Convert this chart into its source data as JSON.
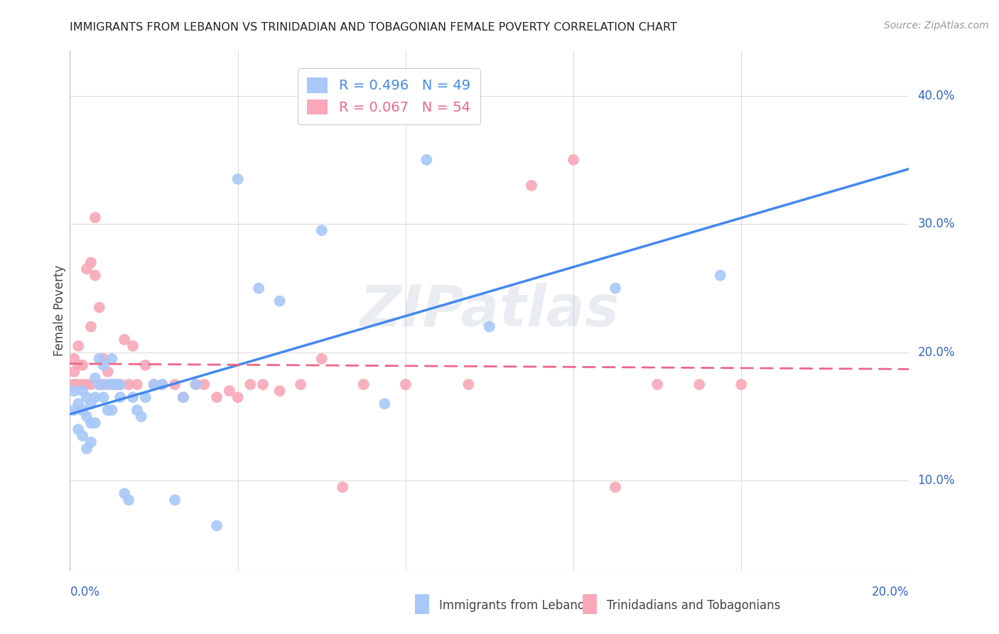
{
  "title": "IMMIGRANTS FROM LEBANON VS TRINIDADIAN AND TOBAGONIAN FEMALE POVERTY CORRELATION CHART",
  "source": "Source: ZipAtlas.com",
  "ylabel": "Female Poverty",
  "yticks": [
    0.1,
    0.2,
    0.3,
    0.4
  ],
  "ytick_labels": [
    "10.0%",
    "20.0%",
    "30.0%",
    "40.0%"
  ],
  "xlim": [
    0.0,
    0.2
  ],
  "ylim": [
    0.03,
    0.435
  ],
  "blue_color": "#a8c8f8",
  "pink_color": "#f8a8b8",
  "line_blue": "#4488ee",
  "line_pink": "#ee6688",
  "watermark": "ZIPatlas",
  "blue_R": 0.496,
  "blue_N": 49,
  "pink_R": 0.067,
  "pink_N": 54,
  "blue_scatter_x": [
    0.001,
    0.001,
    0.002,
    0.002,
    0.003,
    0.003,
    0.003,
    0.004,
    0.004,
    0.004,
    0.005,
    0.005,
    0.005,
    0.006,
    0.006,
    0.006,
    0.007,
    0.007,
    0.008,
    0.008,
    0.009,
    0.009,
    0.01,
    0.01,
    0.01,
    0.011,
    0.012,
    0.012,
    0.013,
    0.014,
    0.015,
    0.016,
    0.017,
    0.018,
    0.02,
    0.022,
    0.025,
    0.027,
    0.03,
    0.035,
    0.04,
    0.045,
    0.05,
    0.06,
    0.075,
    0.085,
    0.1,
    0.13,
    0.155
  ],
  "blue_scatter_y": [
    0.155,
    0.17,
    0.14,
    0.16,
    0.135,
    0.155,
    0.17,
    0.125,
    0.15,
    0.165,
    0.13,
    0.145,
    0.16,
    0.145,
    0.165,
    0.18,
    0.175,
    0.195,
    0.165,
    0.19,
    0.155,
    0.175,
    0.155,
    0.175,
    0.195,
    0.175,
    0.165,
    0.175,
    0.09,
    0.085,
    0.165,
    0.155,
    0.15,
    0.165,
    0.175,
    0.175,
    0.085,
    0.165,
    0.175,
    0.065,
    0.335,
    0.25,
    0.24,
    0.295,
    0.16,
    0.35,
    0.22,
    0.25,
    0.26
  ],
  "pink_scatter_x": [
    0.001,
    0.001,
    0.001,
    0.001,
    0.002,
    0.002,
    0.002,
    0.003,
    0.003,
    0.003,
    0.004,
    0.004,
    0.005,
    0.005,
    0.005,
    0.006,
    0.006,
    0.007,
    0.007,
    0.008,
    0.008,
    0.009,
    0.01,
    0.011,
    0.012,
    0.013,
    0.014,
    0.015,
    0.016,
    0.018,
    0.02,
    0.022,
    0.025,
    0.027,
    0.03,
    0.032,
    0.035,
    0.038,
    0.04,
    0.043,
    0.046,
    0.05,
    0.055,
    0.06,
    0.07,
    0.08,
    0.095,
    0.11,
    0.13,
    0.15,
    0.065,
    0.12,
    0.14,
    0.16
  ],
  "pink_scatter_y": [
    0.175,
    0.185,
    0.195,
    0.175,
    0.175,
    0.19,
    0.205,
    0.175,
    0.19,
    0.155,
    0.265,
    0.175,
    0.27,
    0.22,
    0.175,
    0.26,
    0.305,
    0.235,
    0.175,
    0.195,
    0.175,
    0.185,
    0.175,
    0.175,
    0.175,
    0.21,
    0.175,
    0.205,
    0.175,
    0.19,
    0.175,
    0.175,
    0.175,
    0.165,
    0.175,
    0.175,
    0.165,
    0.17,
    0.165,
    0.175,
    0.175,
    0.17,
    0.175,
    0.195,
    0.175,
    0.175,
    0.175,
    0.33,
    0.095,
    0.175,
    0.095,
    0.35,
    0.175,
    0.175
  ]
}
